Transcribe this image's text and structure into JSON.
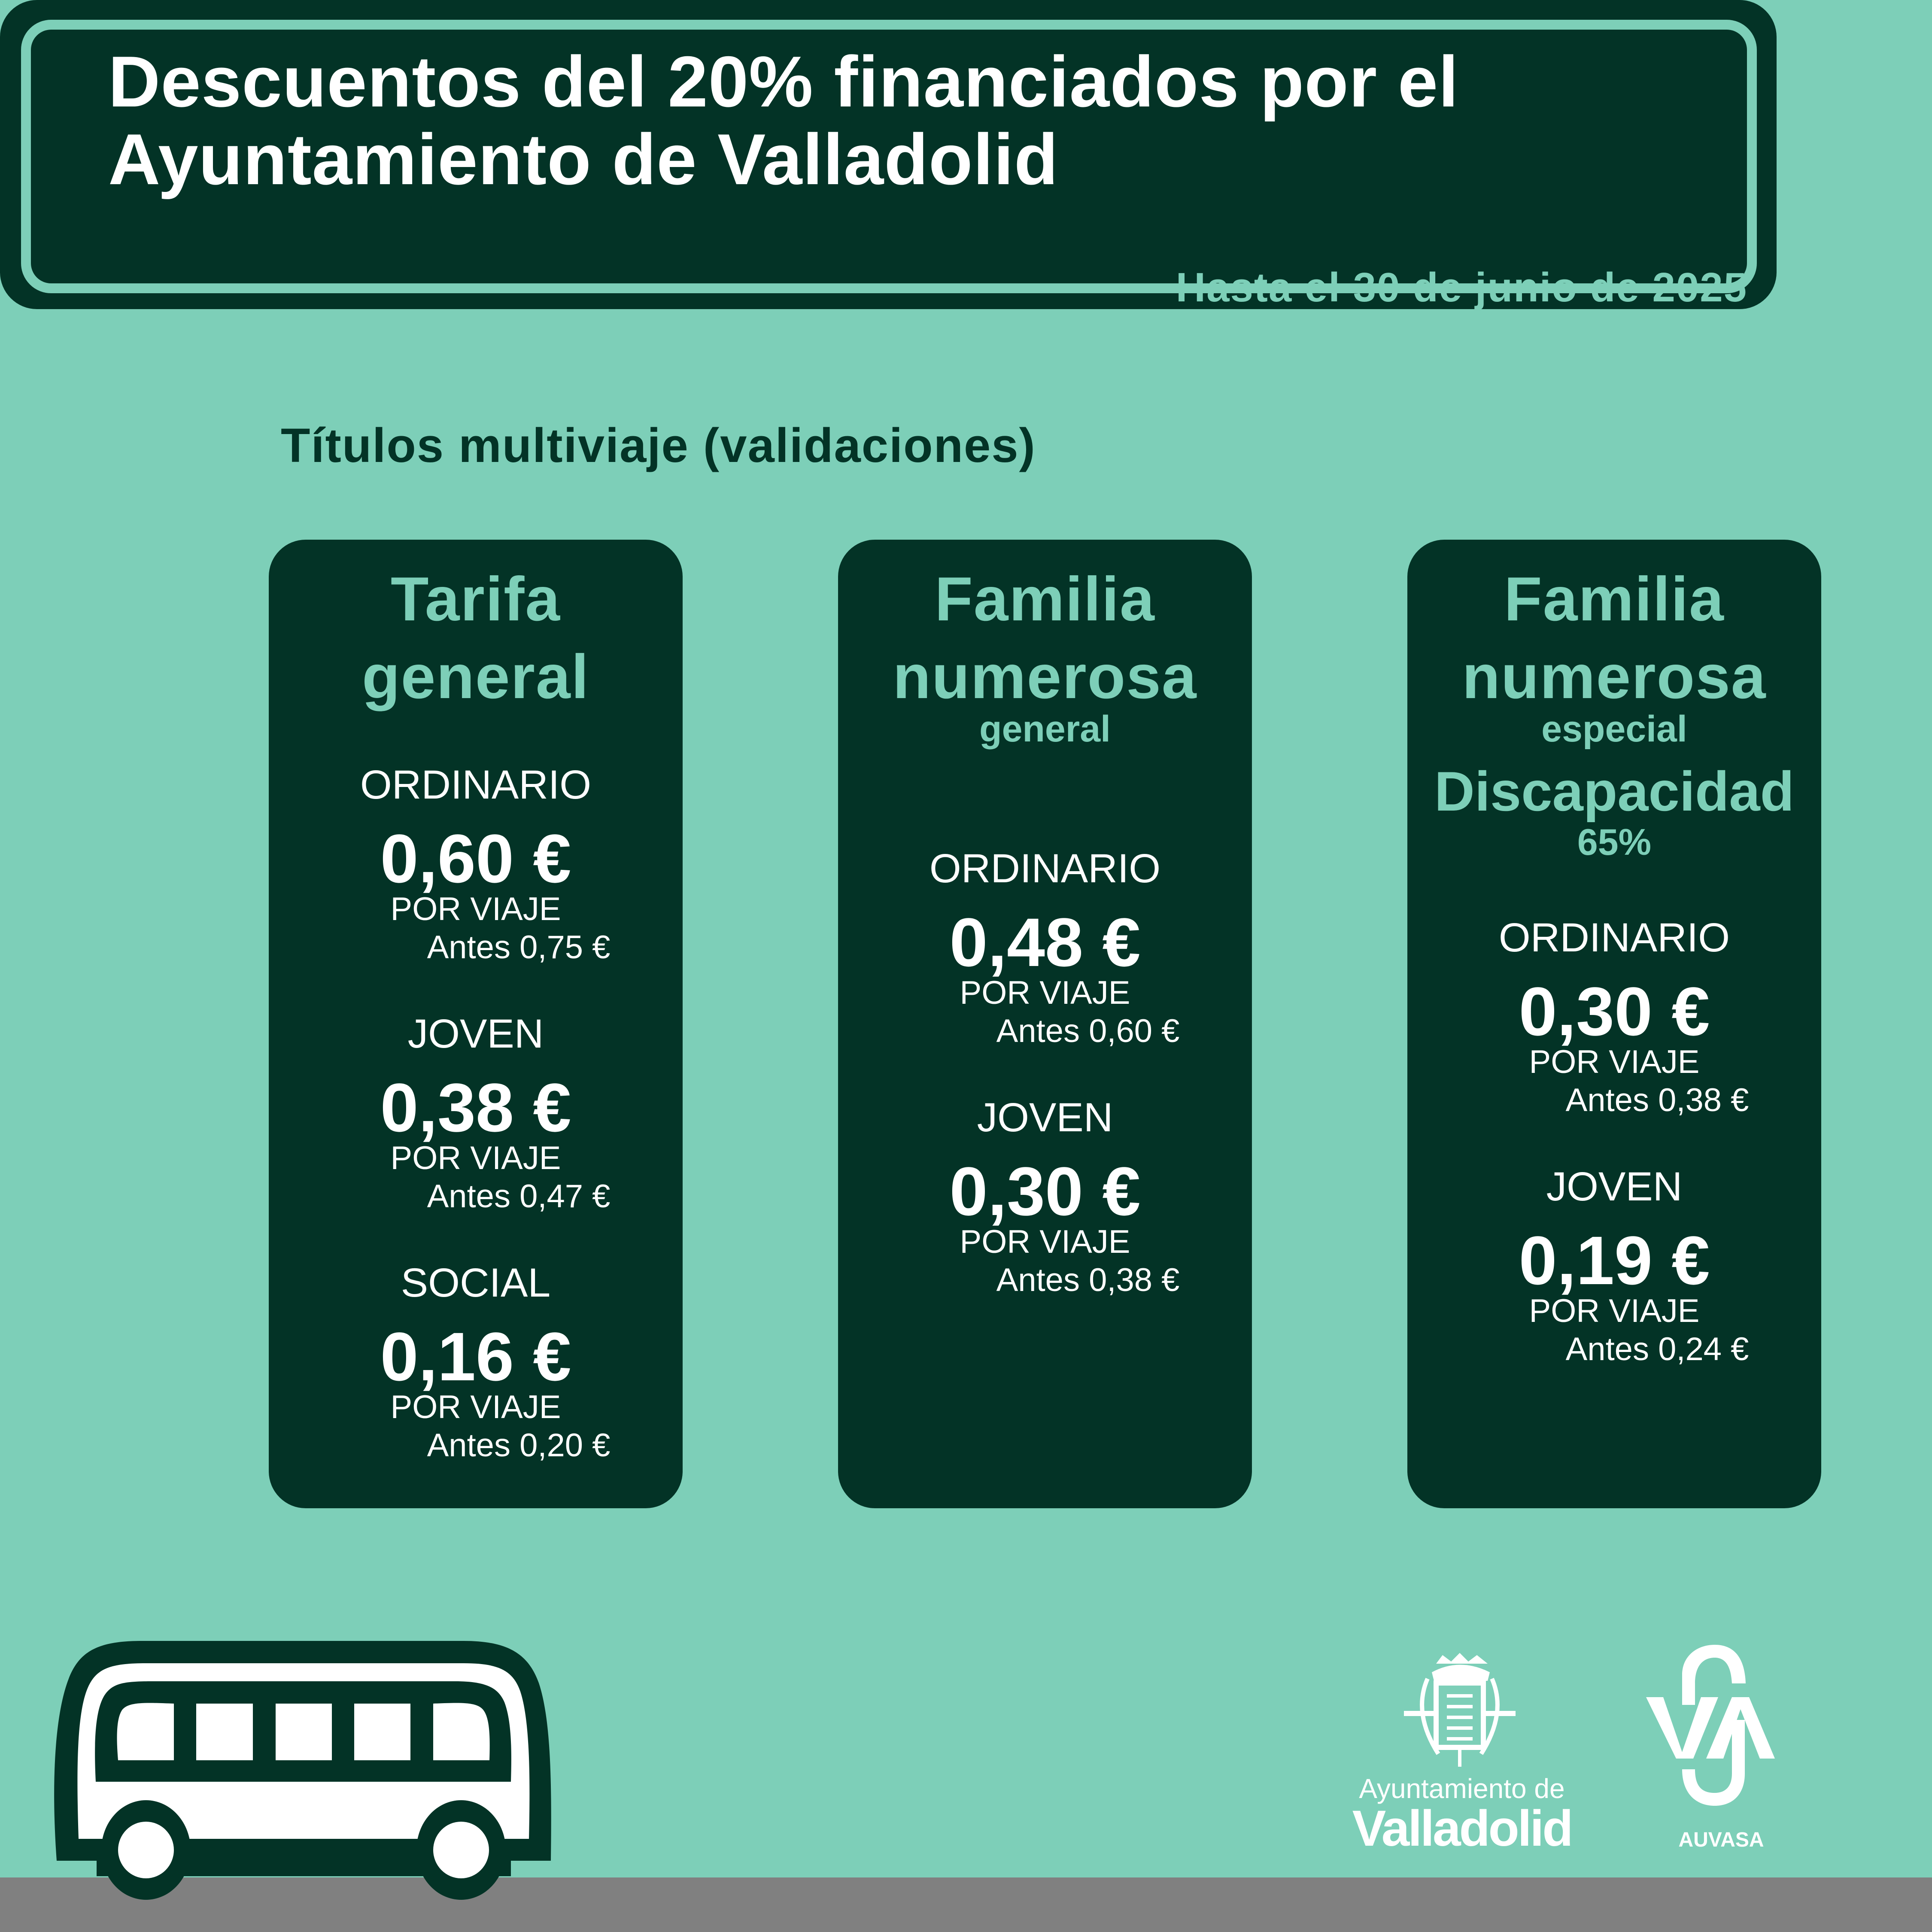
{
  "colors": {
    "background": "#7dcfb8",
    "dark": "#033326",
    "accent": "#7dcfb8",
    "road": "#808080"
  },
  "header": {
    "title_line1": "Descuentos del 20% financiados por el",
    "title_line2": "Ayuntamiento de Valladolid",
    "subtitle": "Hasta el 30 de junio de 2025"
  },
  "section_title": "Títulos multiviaje (validaciones)",
  "cards": [
    {
      "title1": "Tarifa",
      "title2": "general",
      "groups": [
        {
          "label": "ORDINARIO",
          "price": "0,60 €",
          "unit": "POR VIAJE",
          "before": "Antes 0,75 €"
        },
        {
          "label": "JOVEN",
          "price": "0,38 €",
          "unit": "POR VIAJE",
          "before": "Antes 0,47 €"
        },
        {
          "label": "SOCIAL",
          "price": "0,16 €",
          "unit": "POR VIAJE",
          "before": "Antes 0,20 €"
        }
      ]
    },
    {
      "title1": "Familia",
      "title2": "numerosa",
      "subtitle": "general",
      "groups": [
        {
          "label": "ORDINARIO",
          "price": "0,48 €",
          "unit": "POR VIAJE",
          "before": "Antes 0,60 €"
        },
        {
          "label": "JOVEN",
          "price": "0,30 €",
          "unit": "POR VIAJE",
          "before": "Antes 0,38 €"
        }
      ]
    },
    {
      "title1": "Familia",
      "title2": "numerosa",
      "subtitle": "especial",
      "extra1": "Discapacidad",
      "extra2": "65%",
      "groups": [
        {
          "label": "ORDINARIO",
          "price": "0,30 €",
          "unit": "POR VIAJE",
          "before": "Antes 0,38 €"
        },
        {
          "label": "JOVEN",
          "price": "0,19 €",
          "unit": "POR VIAJE",
          "before": "Antes 0,24 €"
        }
      ]
    }
  ],
  "footer": {
    "bus_icon": "bus-icon",
    "city_logo_line1": "Ayuntamiento de",
    "city_logo_line2": "Valladolid",
    "auvasa_logo": "AUVASA"
  }
}
